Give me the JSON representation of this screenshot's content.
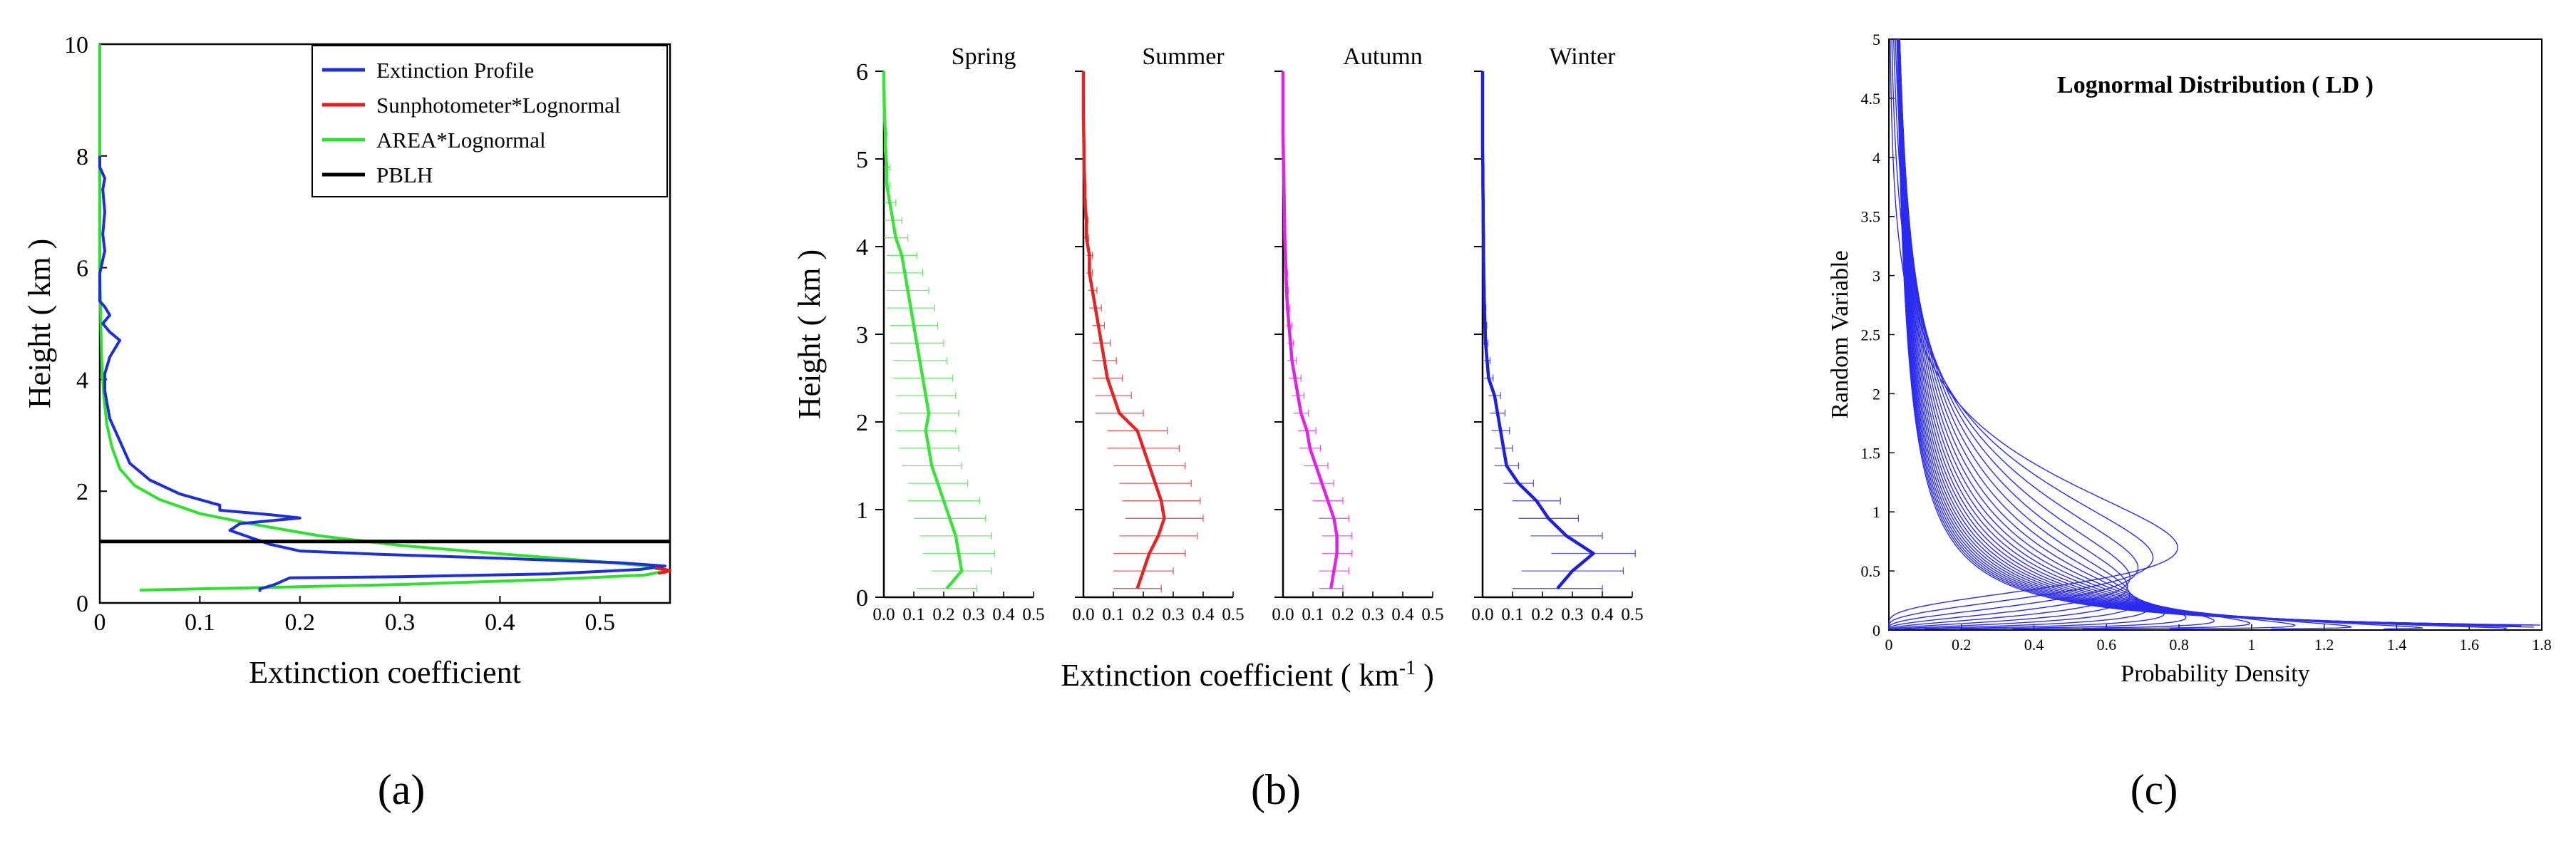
{
  "figure": {
    "captions": [
      "(a)",
      "(b)",
      "(c)"
    ]
  },
  "chart_data": [
    {
      "type": "line",
      "panel": "a",
      "xlabel": "Extinction coefficient",
      "ylabel": "Height ( km )",
      "xlim": [
        0,
        0.57
      ],
      "ylim": [
        0,
        10
      ],
      "xticks": [
        0,
        0.1,
        0.2,
        0.3,
        0.4,
        0.5
      ],
      "xtick_labels": [
        "0",
        "0.1",
        "0.2",
        "0.3",
        "0.4",
        "0.5"
      ],
      "yticks": [
        0,
        2,
        4,
        6,
        8,
        10
      ],
      "ytick_labels": [
        "0",
        "2",
        "4",
        "6",
        "8",
        "10"
      ],
      "legend_position": "top-right",
      "legend": [
        "Extinction Profile",
        "Sunphotometer*Lognormal",
        "AREA*Lognormal",
        "PBLH"
      ],
      "series": [
        {
          "name": "Extinction Profile",
          "color": "#1f2fd6",
          "points": [
            [
              0.16,
              0.2
            ],
            [
              0.16,
              0.25
            ],
            [
              0.175,
              0.33
            ],
            [
              0.19,
              0.45
            ],
            [
              0.3,
              0.47
            ],
            [
              0.45,
              0.52
            ],
            [
              0.54,
              0.6
            ],
            [
              0.565,
              0.66
            ],
            [
              0.52,
              0.72
            ],
            [
              0.4,
              0.8
            ],
            [
              0.28,
              0.87
            ],
            [
              0.2,
              0.93
            ],
            [
              0.17,
              1.05
            ],
            [
              0.13,
              1.3
            ],
            [
              0.14,
              1.42
            ],
            [
              0.2,
              1.52
            ],
            [
              0.17,
              1.58
            ],
            [
              0.12,
              1.66
            ],
            [
              0.12,
              1.75
            ],
            [
              0.08,
              1.95
            ],
            [
              0.05,
              2.2
            ],
            [
              0.03,
              2.5
            ],
            [
              0.02,
              2.9
            ],
            [
              0.01,
              3.3
            ],
            [
              0.005,
              3.8
            ],
            [
              0.005,
              4.1
            ],
            [
              0.01,
              4.4
            ],
            [
              0.02,
              4.7
            ],
            [
              0.01,
              4.85
            ],
            [
              0.003,
              5.0
            ],
            [
              0.01,
              5.15
            ],
            [
              0.005,
              5.3
            ],
            [
              0.0,
              5.4
            ],
            [
              0.0,
              5.9
            ],
            [
              0.005,
              6.3
            ],
            [
              0.003,
              6.6
            ],
            [
              0.005,
              7.0
            ],
            [
              0.003,
              7.4
            ],
            [
              0.005,
              7.6
            ],
            [
              0.0,
              7.8
            ],
            [
              0.0,
              8.0
            ]
          ]
        },
        {
          "name": "Sunphotometer*Lognormal",
          "color": "#e81c1c",
          "points": [
            [
              0.555,
              0.62
            ],
            [
              0.565,
              0.6
            ],
            [
              0.57,
              0.58
            ],
            [
              0.565,
              0.55
            ],
            [
              0.558,
              0.53
            ]
          ]
        },
        {
          "name": "AREA*Lognormal",
          "color": "#2fe02f",
          "points": [
            [
              0.04,
              0.23
            ],
            [
              0.15,
              0.27
            ],
            [
              0.3,
              0.33
            ],
            [
              0.45,
              0.42
            ],
            [
              0.545,
              0.5
            ],
            [
              0.565,
              0.57
            ],
            [
              0.56,
              0.64
            ],
            [
              0.5,
              0.74
            ],
            [
              0.4,
              0.88
            ],
            [
              0.3,
              1.03
            ],
            [
              0.22,
              1.2
            ],
            [
              0.15,
              1.42
            ],
            [
              0.1,
              1.6
            ],
            [
              0.06,
              1.85
            ],
            [
              0.035,
              2.1
            ],
            [
              0.02,
              2.4
            ],
            [
              0.012,
              2.8
            ],
            [
              0.007,
              3.2
            ],
            [
              0.004,
              3.7
            ],
            [
              0.002,
              4.3
            ],
            [
              0.001,
              5.0
            ],
            [
              0.0,
              6.0
            ],
            [
              0.0,
              10.0
            ]
          ]
        },
        {
          "name": "PBLH",
          "color": "#000000",
          "points": [
            [
              0,
              1.1
            ],
            [
              0.57,
              1.1
            ]
          ]
        }
      ]
    },
    {
      "type": "line",
      "panel": "b",
      "xlabel": "Extinction coefficient ( km",
      "xlabel_sup": "-1",
      "xlabel_end": " )",
      "ylabel": "Height ( km )",
      "ylim": [
        0,
        6
      ],
      "yticks": [
        0,
        1,
        2,
        3,
        4,
        5,
        6
      ],
      "ytick_labels": [
        "0",
        "1",
        "2",
        "3",
        "4",
        "5",
        "6"
      ],
      "xlim": [
        0,
        0.5
      ],
      "xtick_labels": [
        "0.0",
        "0.1",
        "0.2",
        "0.3",
        "0.4",
        "0.5"
      ],
      "series": [
        {
          "name": "Spring",
          "color": "#41e041",
          "heights": [
            0.1,
            0.3,
            0.5,
            0.7,
            0.9,
            1.1,
            1.3,
            1.5,
            1.7,
            1.9,
            2.1,
            2.3,
            2.5,
            2.7,
            2.9,
            3.1,
            3.3,
            3.5,
            3.7,
            3.9,
            4.1,
            4.3,
            4.5,
            4.7,
            4.9,
            5.1,
            5.3,
            5.5,
            5.7,
            5.9
          ],
          "values": [
            0.21,
            0.26,
            0.25,
            0.24,
            0.22,
            0.2,
            0.18,
            0.16,
            0.15,
            0.14,
            0.15,
            0.14,
            0.13,
            0.12,
            0.11,
            0.1,
            0.09,
            0.08,
            0.07,
            0.06,
            0.04,
            0.03,
            0.02,
            0.01,
            0.01,
            0.005,
            0.005,
            0.002,
            0.001,
            0.0
          ],
          "errors": [
            0.1,
            0.1,
            0.12,
            0.12,
            0.12,
            0.12,
            0.1,
            0.1,
            0.1,
            0.1,
            0.1,
            0.1,
            0.1,
            0.09,
            0.09,
            0.08,
            0.08,
            0.07,
            0.06,
            0.05,
            0.04,
            0.03,
            0.02,
            0.01,
            0.01,
            0.005,
            0.005,
            0.0,
            0.0,
            0.0
          ]
        },
        {
          "name": "Summer",
          "color": "#e02626",
          "heights": [
            0.1,
            0.3,
            0.5,
            0.7,
            0.9,
            1.1,
            1.3,
            1.5,
            1.7,
            1.9,
            2.1,
            2.3,
            2.5,
            2.7,
            2.9,
            3.1,
            3.3,
            3.5,
            3.7,
            3.9,
            4.1,
            4.3,
            4.5,
            4.7,
            4.9,
            5.1,
            5.3,
            5.5,
            5.7,
            5.9
          ],
          "values": [
            0.18,
            0.2,
            0.22,
            0.25,
            0.27,
            0.26,
            0.24,
            0.22,
            0.2,
            0.18,
            0.12,
            0.1,
            0.08,
            0.07,
            0.06,
            0.05,
            0.04,
            0.03,
            0.02,
            0.02,
            0.01,
            0.01,
            0.005,
            0.005,
            0.002,
            0.002,
            0.001,
            0.0,
            0.0,
            0.0
          ],
          "errors": [
            0.08,
            0.1,
            0.12,
            0.13,
            0.13,
            0.13,
            0.12,
            0.12,
            0.12,
            0.1,
            0.08,
            0.06,
            0.05,
            0.04,
            0.03,
            0.02,
            0.02,
            0.015,
            0.01,
            0.01,
            0.008,
            0.005,
            0.005,
            0.0,
            0.0,
            0.0,
            0.0,
            0.0,
            0.0,
            0.0
          ]
        },
        {
          "name": "Autumn",
          "color": "#e025e0",
          "heights": [
            0.1,
            0.3,
            0.5,
            0.7,
            0.9,
            1.1,
            1.3,
            1.5,
            1.7,
            1.9,
            2.1,
            2.3,
            2.5,
            2.7,
            2.9,
            3.1,
            3.3,
            3.5,
            3.7,
            3.9,
            4.1,
            4.3,
            4.5,
            4.7,
            4.9,
            5.1,
            5.3,
            5.5,
            5.7,
            5.9
          ],
          "values": [
            0.16,
            0.17,
            0.18,
            0.18,
            0.17,
            0.15,
            0.13,
            0.11,
            0.09,
            0.08,
            0.06,
            0.05,
            0.04,
            0.03,
            0.025,
            0.02,
            0.015,
            0.012,
            0.01,
            0.008,
            0.006,
            0.005,
            0.004,
            0.003,
            0.002,
            0.001,
            0.0,
            0.0,
            0.0,
            0.0
          ],
          "errors": [
            0.04,
            0.05,
            0.05,
            0.05,
            0.05,
            0.05,
            0.04,
            0.04,
            0.035,
            0.03,
            0.025,
            0.02,
            0.02,
            0.015,
            0.01,
            0.01,
            0.008,
            0.006,
            0.005,
            0.004,
            0.003,
            0.002,
            0.002,
            0.0,
            0.0,
            0.0,
            0.0,
            0.0,
            0.0,
            0.0
          ]
        },
        {
          "name": "Winter",
          "color": "#2020d8",
          "heights": [
            0.1,
            0.3,
            0.5,
            0.7,
            0.9,
            1.1,
            1.3,
            1.5,
            1.7,
            1.9,
            2.1,
            2.3,
            2.5,
            2.7,
            2.9,
            3.1,
            3.3,
            3.5,
            3.7,
            3.9,
            4.1,
            4.3,
            4.5,
            4.7,
            4.9,
            5.1,
            5.3,
            5.5,
            5.7,
            5.9
          ],
          "values": [
            0.25,
            0.3,
            0.37,
            0.28,
            0.22,
            0.18,
            0.12,
            0.08,
            0.07,
            0.06,
            0.05,
            0.04,
            0.02,
            0.015,
            0.01,
            0.008,
            0.006,
            0.005,
            0.004,
            0.003,
            0.003,
            0.002,
            0.002,
            0.001,
            0.001,
            0.0,
            0.0,
            0.0,
            0.0,
            0.0
          ],
          "errors": [
            0.15,
            0.17,
            0.14,
            0.12,
            0.1,
            0.08,
            0.05,
            0.04,
            0.03,
            0.03,
            0.025,
            0.02,
            0.015,
            0.01,
            0.008,
            0.006,
            0.005,
            0.004,
            0.003,
            0.003,
            0.002,
            0.002,
            0.002,
            0.0,
            0.0,
            0.0,
            0.0,
            0.0,
            0.0,
            0.0
          ]
        }
      ]
    },
    {
      "type": "line",
      "panel": "c",
      "title": "Lognormal Distribution ( LD )",
      "xlabel": "Probability Density",
      "ylabel": "Random Variable",
      "xlim": [
        0,
        1.8
      ],
      "ylim": [
        0,
        5
      ],
      "xticks": [
        0,
        0.2,
        0.4,
        0.6,
        0.8,
        1,
        1.2,
        1.4,
        1.6,
        1.8
      ],
      "xtick_labels": [
        "0",
        "0.2",
        "0.4",
        "0.6",
        "0.8",
        "1",
        "1.2",
        "1.4",
        "1.6",
        "1.8"
      ],
      "yticks": [
        0,
        0.5,
        1,
        1.5,
        2,
        2.5,
        3,
        3.5,
        4,
        4.5,
        5
      ],
      "ytick_labels": [
        "0",
        "0.5",
        "1",
        "1.5",
        "2",
        "2.5",
        "3",
        "3.5",
        "4",
        "4.5",
        "5"
      ],
      "color": "#2b2bf0",
      "curve_family": "lognormal pdf, sigma from 0.6 to 3.0 (25 curves)",
      "sigmas": [
        0.6,
        0.7,
        0.8,
        0.9,
        1.0,
        1.1,
        1.2,
        1.3,
        1.4,
        1.5,
        1.6,
        1.7,
        1.8,
        1.9,
        2.0,
        2.1,
        2.2,
        2.3,
        2.4,
        2.5,
        2.6,
        2.7,
        2.8,
        2.9,
        3.0
      ]
    }
  ]
}
